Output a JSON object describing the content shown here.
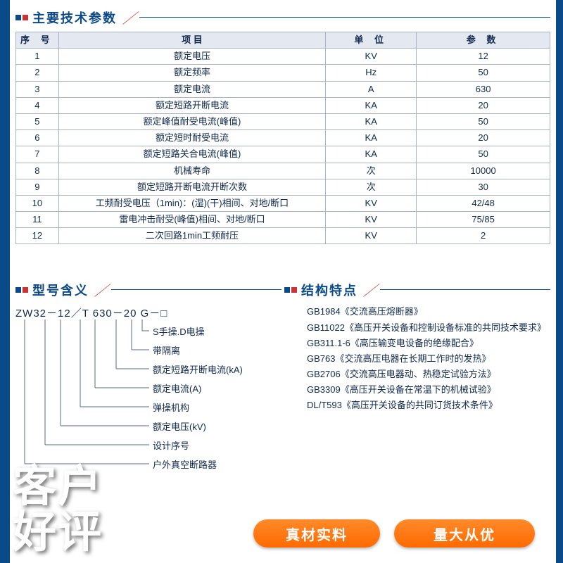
{
  "page_bg": "#ffffff",
  "side_bar_color": "#0b4a88",
  "text_color": "#10294d",
  "sections": {
    "spec_title": "主要技术参数",
    "model_title": "型号含义",
    "struct_title": "结构特点"
  },
  "spec_table": {
    "columns": [
      "序 号",
      "项 目",
      "单 位",
      "参 数"
    ],
    "rows": [
      [
        "1",
        "额定电压",
        "KV",
        "12"
      ],
      [
        "2",
        "额定频率",
        "Hz",
        "50"
      ],
      [
        "3",
        "额定电流",
        "A",
        "630"
      ],
      [
        "4",
        "额定短路开断电流",
        "KA",
        "20"
      ],
      [
        "5",
        "额定峰值耐受电流(峰值)",
        "KA",
        "50"
      ],
      [
        "6",
        "额定短时耐受电流",
        "KA",
        "20"
      ],
      [
        "7",
        "额定短路关合电流(峰值)",
        "KA",
        "50"
      ],
      [
        "8",
        "机械寿命",
        "次",
        "10000"
      ],
      [
        "9",
        "额定短路开断电流开断次数",
        "次",
        "30"
      ],
      [
        "10",
        "工频耐受电压（1min)：(湿)(干)相间、对地/断口",
        "KV",
        "42/48"
      ],
      [
        "11",
        "雷电冲击耐受(峰值)相间、对地/断口",
        "KV",
        "75/85"
      ],
      [
        "12",
        "二次回路1min工频耐压",
        "KV",
        "2"
      ]
    ],
    "border_color": "#a9b2c6",
    "header_bg": "#e4e8f1",
    "fontsize": 13
  },
  "model": {
    "code": "ZW32－12／T 630－20 G－□",
    "labels": [
      "S手操.D电操",
      "带隔离",
      "额定短路开断电流(kA)",
      "额定电流(A)",
      "弹操机构",
      "额定电压(kV)",
      "设计序号",
      "户外真空断路器"
    ],
    "drops_x": [
      180,
      165,
      143,
      113,
      92,
      64,
      42,
      13
    ],
    "label_y_start": 40,
    "label_y_step": 27,
    "line_color": "#5b6b88"
  },
  "standards": [
    {
      "code": "GB1984",
      "title": "《交流高压熔断器》"
    },
    {
      "code": "GB11022",
      "title": "《高压开关设备和控制设备标准的共同技术要求》"
    },
    {
      "code": "GB311.1-6",
      "title": "《高压输变电设备的绝缘配合》"
    },
    {
      "code": "GB763",
      "title": "《交流高压电器在长期工作时的发热》"
    },
    {
      "code": "GB2706",
      "title": "《交流高压电器动、热稳定试验方法》"
    },
    {
      "code": "GB3309",
      "title": "《高压开关设备在常温下的机械试验》"
    },
    {
      "code": "DL/T593",
      "title": "《高压开关设备的共同订货技术条件》"
    }
  ],
  "overlay": {
    "big_line1": "客户",
    "big_line2": "好评",
    "btn1": "真材实料",
    "btn2": "量大从优",
    "btn_bg": "#ff7a14",
    "big_color": "#ffffff"
  }
}
